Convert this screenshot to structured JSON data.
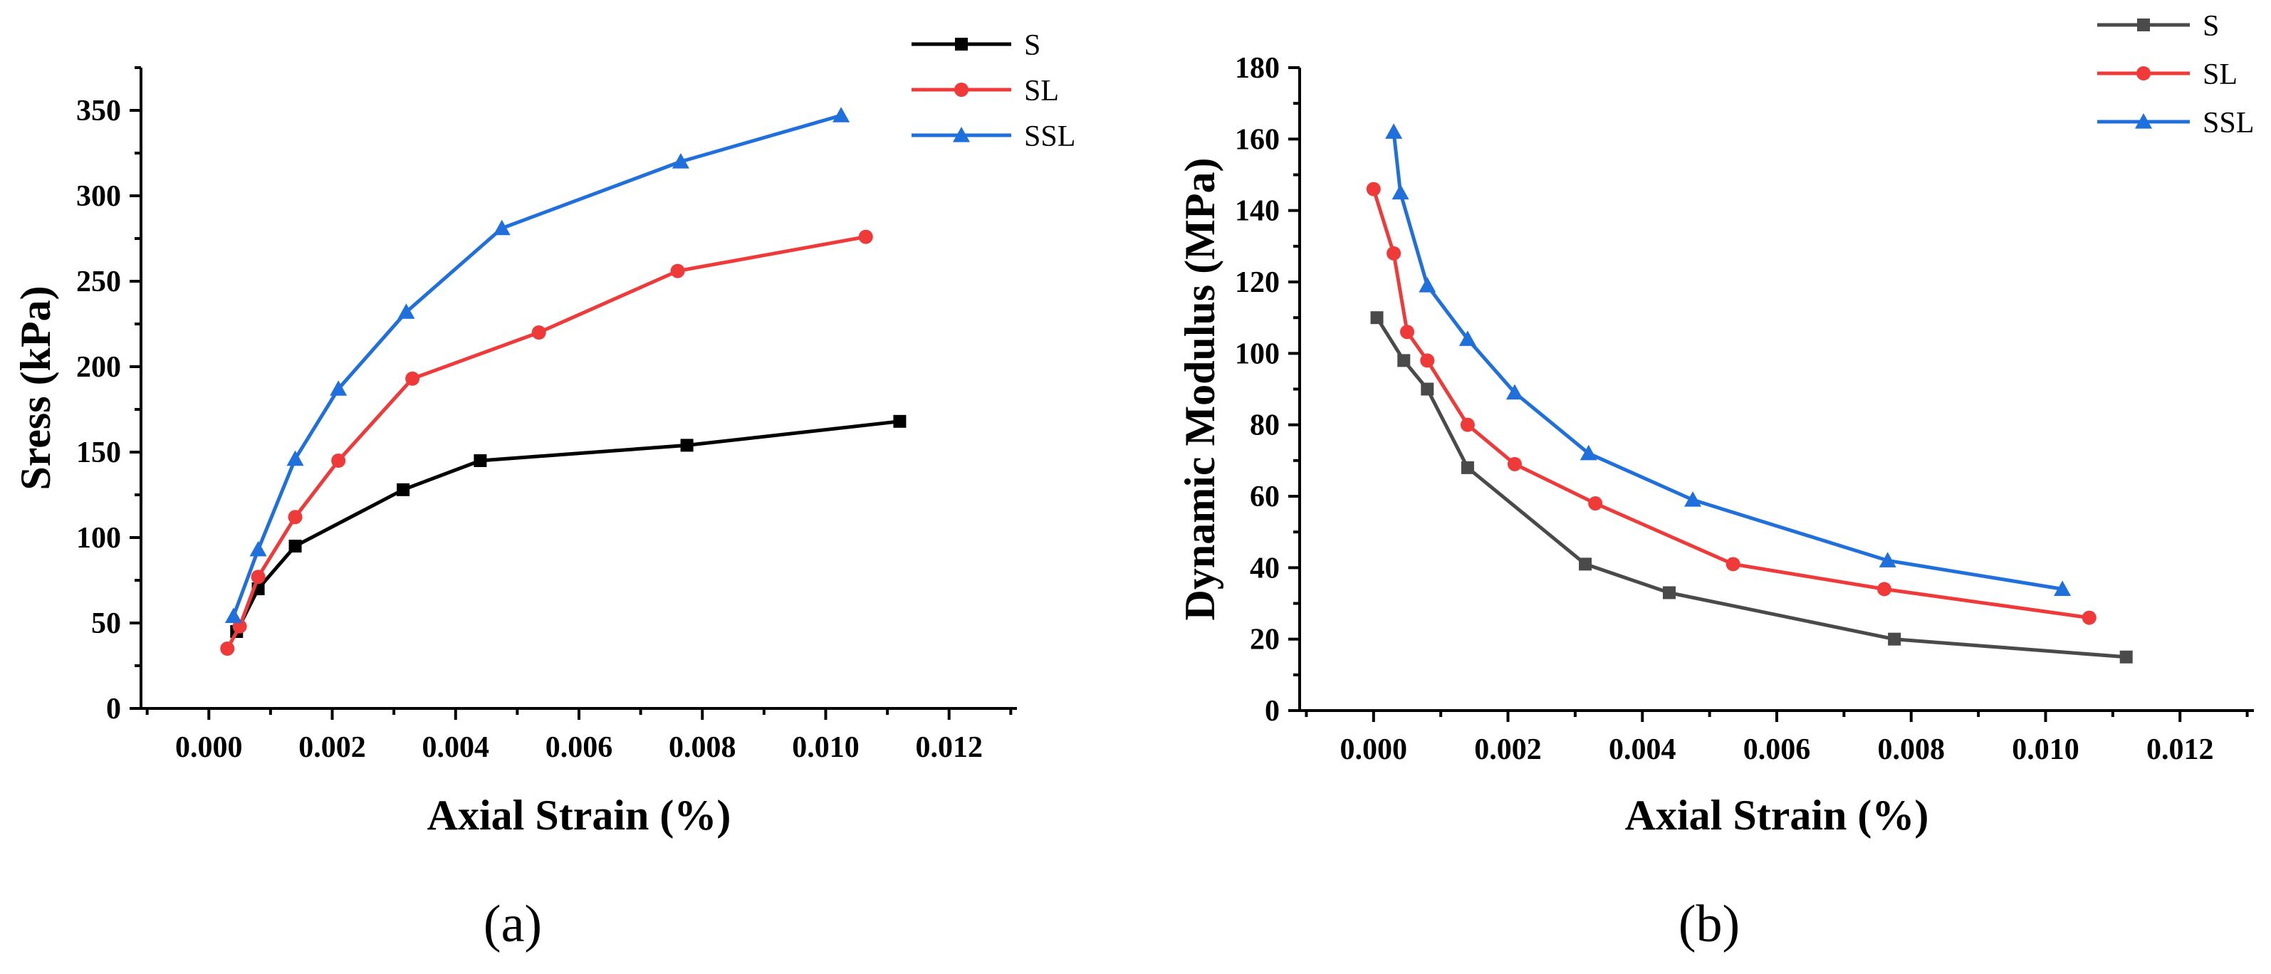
{
  "chart_data": [
    {
      "type": "line",
      "panel_label": "(a)",
      "xlabel": "Axial Strain (%)",
      "ylabel": "Sress (kPa)",
      "xlim": [
        -0.0011,
        0.0131
      ],
      "ylim": [
        0,
        375
      ],
      "xticks": [
        0.0,
        0.002,
        0.004,
        0.006,
        0.008,
        0.01,
        0.012
      ],
      "xtick_labels": [
        "0.000",
        "0.002",
        "0.004",
        "0.006",
        "0.008",
        "0.010",
        "0.012"
      ],
      "yticks": [
        0,
        50,
        100,
        150,
        200,
        250,
        300,
        350
      ],
      "ytick_labels": [
        "0",
        "50",
        "100",
        "150",
        "200",
        "250",
        "300",
        "350"
      ],
      "legend_position": "top-right",
      "grid": false,
      "series": [
        {
          "name": "S",
          "color": "#000000",
          "marker": "square",
          "x": [
            0.00045,
            0.0008,
            0.0014,
            0.00315,
            0.0044,
            0.00775,
            0.0112
          ],
          "y": [
            45,
            70,
            95,
            128,
            145,
            154,
            168
          ]
        },
        {
          "name": "SL",
          "color": "#f03a3a",
          "marker": "circle",
          "x": [
            0.0003,
            0.0005,
            0.0008,
            0.0014,
            0.0021,
            0.0033,
            0.00535,
            0.0076,
            0.01065
          ],
          "y": [
            35,
            48,
            77,
            112,
            145,
            193,
            220,
            256,
            276
          ]
        },
        {
          "name": "SSL",
          "color": "#1f6fdc",
          "marker": "triangle",
          "x": [
            0.0004,
            0.0008,
            0.0014,
            0.0021,
            0.0032,
            0.00475,
            0.00765,
            0.01025
          ],
          "y": [
            54,
            93,
            146,
            187,
            232,
            281,
            320,
            347
          ]
        }
      ]
    },
    {
      "type": "line",
      "panel_label": "(b)",
      "xlabel": "Axial Strain (%)",
      "ylabel": "Dynamic Modulus (MPa)",
      "xlim": [
        -0.0011,
        0.0131
      ],
      "ylim": [
        0,
        180
      ],
      "xticks": [
        0.0,
        0.002,
        0.004,
        0.006,
        0.008,
        0.01,
        0.012
      ],
      "xtick_labels": [
        "0.000",
        "0.002",
        "0.004",
        "0.006",
        "0.008",
        "0.010",
        "0.012"
      ],
      "yticks": [
        0,
        20,
        40,
        60,
        80,
        100,
        120,
        140,
        160,
        180
      ],
      "ytick_labels": [
        "0",
        "20",
        "40",
        "60",
        "80",
        "100",
        "120",
        "140",
        "160",
        "180"
      ],
      "legend_position": "top-right",
      "grid": false,
      "series": [
        {
          "name": "S",
          "color": "#4a4a4a",
          "marker": "square",
          "x": [
            5e-05,
            0.00045,
            0.0008,
            0.0014,
            0.00315,
            0.0044,
            0.00775,
            0.0112
          ],
          "y": [
            110,
            98,
            90,
            68,
            41,
            33,
            20,
            15
          ]
        },
        {
          "name": "SL",
          "color": "#f03a3a",
          "marker": "circle",
          "x": [
            0.0,
            0.0003,
            0.0005,
            0.0008,
            0.0014,
            0.0021,
            0.0033,
            0.00535,
            0.0076,
            0.01065
          ],
          "y": [
            146,
            128,
            106,
            98,
            80,
            69,
            58,
            41,
            34,
            26
          ]
        },
        {
          "name": "SSL",
          "color": "#1f6fdc",
          "marker": "triangle",
          "x": [
            0.0003,
            0.0004,
            0.0008,
            0.0014,
            0.0021,
            0.0032,
            0.00475,
            0.00765,
            0.01025
          ],
          "y": [
            162,
            145,
            119,
            104,
            89,
            72,
            59,
            42,
            34
          ]
        }
      ]
    }
  ]
}
